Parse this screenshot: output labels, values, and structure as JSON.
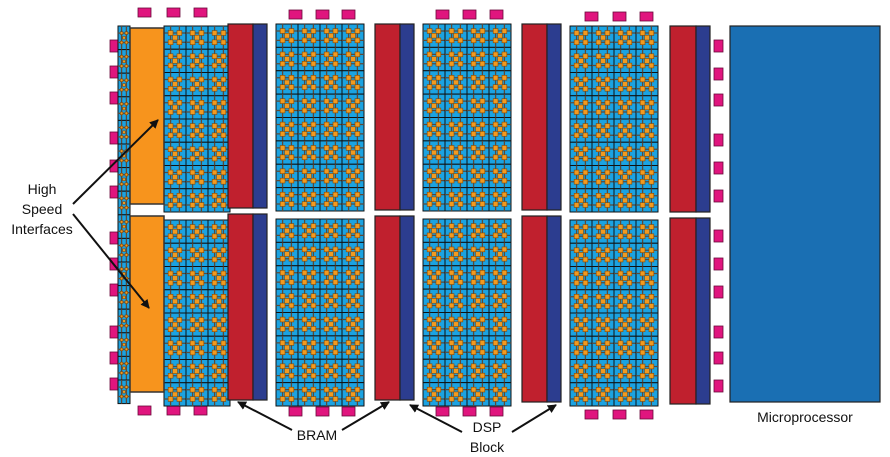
{
  "labels": {
    "hsi_line1": "High",
    "hsi_line2": "Speed",
    "hsi_line3": "Interfaces",
    "bram": "BRAM",
    "dsp_line1": "DSP",
    "dsp_line2": "Block",
    "microprocessor": "Microprocessor"
  },
  "colors": {
    "io_pad": "#e0157e",
    "logic_tile": "#1ba3e2",
    "tile_border": "#111111",
    "switch_block": "#f29a1f",
    "interconnect": "#5a4a3a",
    "hsi_block": "#f7941d",
    "bram_block": "#c0202e",
    "dsp_block": "#2c3d8f",
    "microprocessor_block": "#1a6fb3",
    "arrow": "#111111"
  }
}
